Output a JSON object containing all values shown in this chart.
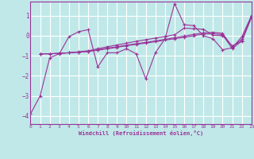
{
  "xlabel": "Windchill (Refroidissement éolien,°C)",
  "bg_color": "#c0e8e8",
  "grid_color": "#a0d0d0",
  "line_color": "#993399",
  "xlim": [
    0,
    23
  ],
  "ylim": [
    -4.4,
    1.7
  ],
  "yticks": [
    -4,
    -3,
    -2,
    -1,
    0,
    1
  ],
  "xticks": [
    0,
    1,
    2,
    3,
    4,
    5,
    6,
    7,
    8,
    9,
    10,
    11,
    12,
    13,
    14,
    15,
    16,
    17,
    18,
    19,
    20,
    21,
    22,
    23
  ],
  "series": [
    {
      "x": [
        0,
        1,
        2,
        3,
        4,
        5,
        6,
        7,
        8,
        9,
        10,
        11,
        12,
        13,
        14,
        15,
        16,
        17,
        18,
        19,
        20,
        21,
        22,
        23
      ],
      "y": [
        -3.9,
        -3.0,
        -1.1,
        -0.9,
        -0.05,
        0.2,
        0.3,
        -1.55,
        -0.85,
        -0.85,
        -0.65,
        -0.9,
        -2.15,
        -0.85,
        -0.15,
        1.6,
        0.55,
        0.5,
        0.0,
        -0.15,
        -0.7,
        -0.6,
        -0.05,
        1.0
      ]
    },
    {
      "x": [
        1,
        2,
        3,
        4,
        5,
        6,
        7,
        8,
        9,
        10,
        11,
        12,
        13,
        14,
        15,
        16,
        17,
        18,
        19,
        20,
        21,
        22,
        23
      ],
      "y": [
        -0.9,
        -0.9,
        -0.88,
        -0.85,
        -0.82,
        -0.78,
        -0.72,
        -0.65,
        -0.58,
        -0.5,
        -0.43,
        -0.37,
        -0.3,
        -0.22,
        -0.15,
        -0.08,
        0.0,
        0.08,
        0.1,
        0.05,
        -0.65,
        -0.25,
        0.9
      ]
    },
    {
      "x": [
        1,
        2,
        3,
        4,
        5,
        6,
        7,
        8,
        9,
        10,
        11,
        12,
        13,
        14,
        15,
        16,
        17,
        18,
        19,
        20,
        21,
        22,
        23
      ],
      "y": [
        -0.9,
        -0.9,
        -0.88,
        -0.85,
        -0.82,
        -0.78,
        -0.7,
        -0.62,
        -0.55,
        -0.47,
        -0.4,
        -0.33,
        -0.26,
        -0.18,
        -0.1,
        -0.02,
        0.07,
        0.14,
        0.17,
        0.12,
        -0.55,
        -0.18,
        0.93
      ]
    },
    {
      "x": [
        1,
        2,
        3,
        4,
        5,
        6,
        7,
        8,
        9,
        10,
        11,
        12,
        13,
        14,
        15,
        16,
        17,
        18,
        19,
        20,
        21,
        22,
        23
      ],
      "y": [
        -0.9,
        -0.9,
        -0.88,
        -0.85,
        -0.8,
        -0.75,
        -0.65,
        -0.55,
        -0.46,
        -0.37,
        -0.28,
        -0.2,
        -0.12,
        -0.04,
        0.05,
        0.38,
        0.35,
        0.32,
        0.02,
        0.0,
        -0.5,
        -0.3,
        0.97
      ]
    }
  ]
}
